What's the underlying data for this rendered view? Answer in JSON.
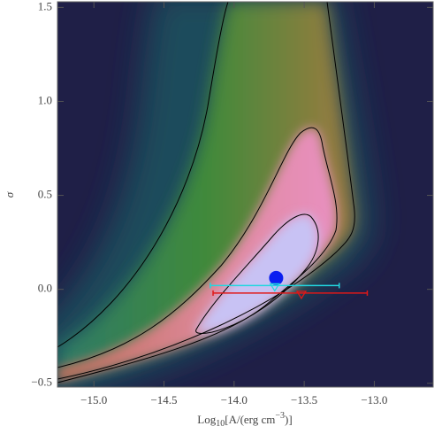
{
  "chart_data": {
    "type": "density",
    "xlabel": {
      "base": "Log",
      "sub": "10",
      "main": "[A/(erg cm",
      "sup": "−3",
      "end": ")]"
    },
    "ylabel": "σ",
    "xlim": [
      -15.26,
      -12.58
    ],
    "ylim": [
      -0.52,
      1.53
    ],
    "xticks": [
      {
        "value": -15,
        "label": "−15.0"
      },
      {
        "value": -14.5,
        "label": "−14.5"
      },
      {
        "value": -14,
        "label": "−14.0"
      },
      {
        "value": -13.5,
        "label": "−13.5"
      },
      {
        "value": -13,
        "label": "−13.0"
      }
    ],
    "yticks": [
      {
        "value": -0.5,
        "label": "−0.5"
      },
      {
        "value": 0,
        "label": "0.0"
      },
      {
        "value": 0.5,
        "label": "0.5"
      },
      {
        "value": 1,
        "label": "1.0"
      },
      {
        "value": 1.5,
        "label": "1.5"
      }
    ],
    "background": "#1f1f47",
    "markers": [
      {
        "x": -13.7,
        "y": 0.06,
        "color": "#0a1ef0",
        "shape": "circle"
      },
      {
        "x": -13.71,
        "y": 0.02,
        "xmin": -14.17,
        "xmax": -13.25,
        "color": "#22d6e0",
        "shape": "triangle"
      },
      {
        "x": -13.52,
        "y": -0.02,
        "xmin": -14.15,
        "xmax": -13.05,
        "color": "#e01818",
        "shape": "triangle"
      }
    ]
  }
}
